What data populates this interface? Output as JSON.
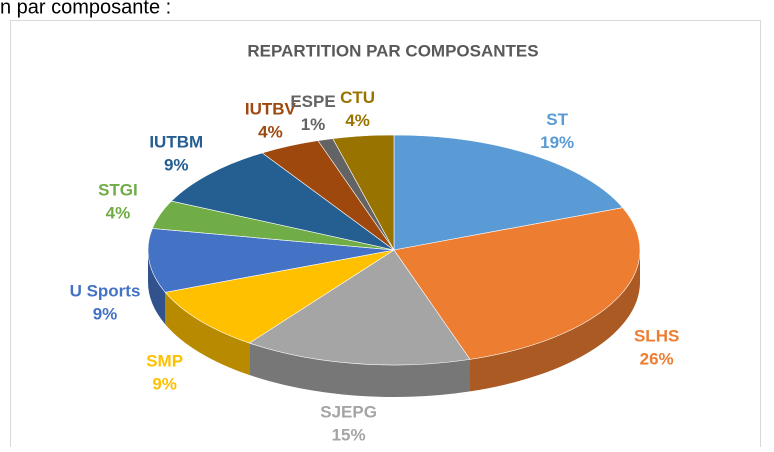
{
  "caption": "n par composante :",
  "chart_data": {
    "type": "pie3d",
    "title": "REPARTITION PAR COMPOSANTES",
    "categories": [
      "ST",
      "SLHS",
      "SJEPG",
      "SMP",
      "U Sports",
      "STGI",
      "IUTBM",
      "IUTBV",
      "ESPE",
      "CTU"
    ],
    "values": [
      19,
      26,
      15,
      9,
      9,
      4,
      9,
      4,
      1,
      4
    ],
    "value_labels": [
      "19%",
      "26%",
      "15%",
      "9%",
      "9%",
      "4%",
      "9%",
      "4%",
      "1%",
      "4%"
    ],
    "colors": [
      "#5b9bd5",
      "#ed7d31",
      "#a5a5a5",
      "#ffc000",
      "#4472c4",
      "#70ad47",
      "#255e91",
      "#9e480e",
      "#636363",
      "#997300"
    ]
  }
}
